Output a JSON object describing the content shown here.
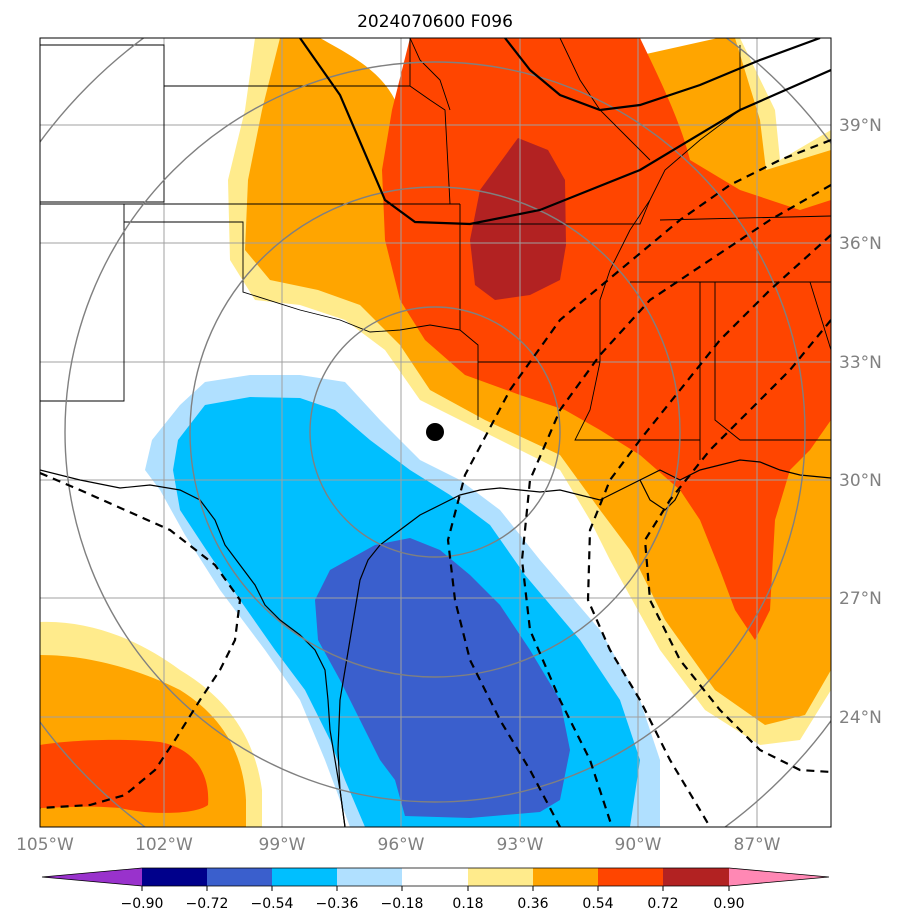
{
  "title": "2024070600 F096",
  "map": {
    "lon_range": [
      -105,
      -85
    ],
    "lat_range": [
      21.5,
      41.5
    ],
    "lon_ticks": [
      "105°W",
      "102°W",
      "99°W",
      "96°W",
      "93°W",
      "90°W",
      "87°W"
    ],
    "lat_ticks": [
      "39°N",
      "36°N",
      "33°N",
      "30°N",
      "27°N",
      "24°N"
    ],
    "marker": {
      "lon": -95.0,
      "lat": 31.2
    }
  },
  "colorbar": {
    "levels": [
      "−0.90",
      "−0.72",
      "−0.54",
      "−0.36",
      "−0.18",
      "0.18",
      "0.36",
      "0.54",
      "0.72",
      "0.90"
    ],
    "colors": [
      "#9932cc",
      "#00008b",
      "#3a5fcd",
      "#00bfff",
      "#b0e0ff",
      "#ffffff",
      "#ffeb8c",
      "#ffa500",
      "#ff4500",
      "#b22222",
      "#ff88b4"
    ]
  },
  "colors": {
    "gridline": "#a0a0a0",
    "range_rings": "#808080",
    "contour": "#000000"
  }
}
